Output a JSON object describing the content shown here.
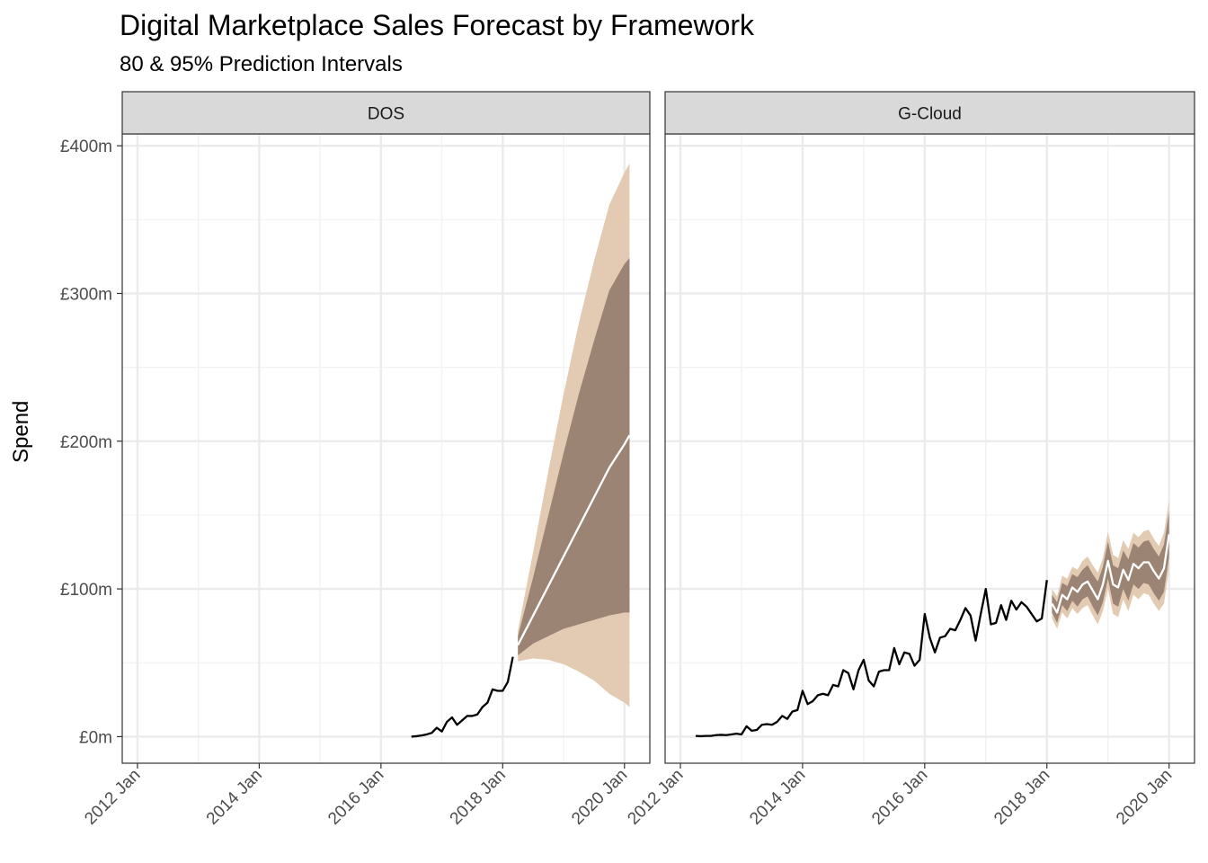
{
  "chart_data": {
    "type": "line",
    "title": "Digital Marketplace Sales Forecast by Framework",
    "subtitle": "80 & 95% Prediction Intervals",
    "ylabel": "Spend",
    "xlabel": "",
    "ylim": [
      -18,
      408
    ],
    "xlim": [
      "2011-10",
      "2020-06"
    ],
    "y_ticks": [
      0,
      100,
      200,
      300,
      400
    ],
    "y_tick_labels": [
      "£0m",
      "£100m",
      "£200m",
      "£300m",
      "£400m"
    ],
    "x_ticks": [
      "2012-01",
      "2014-01",
      "2016-01",
      "2018-01",
      "2020-01"
    ],
    "x_tick_labels": [
      "2012 Jan",
      "2014 Jan",
      "2016 Jan",
      "2018 Jan",
      "2020 Jan"
    ],
    "grid": true,
    "colors": {
      "actual": "#000000",
      "forecast": "#ffffff",
      "pi95": "#e3cbb3",
      "pi80": "#9b8474",
      "strip": "#d9d9d9",
      "grid": "#ebebeb"
    },
    "panels": [
      {
        "name": "DOS",
        "actual": [
          [
            "2016-07",
            0
          ],
          [
            "2016-08",
            0.3
          ],
          [
            "2016-09",
            0.8
          ],
          [
            "2016-10",
            1.5
          ],
          [
            "2016-11",
            2.5
          ],
          [
            "2016-12",
            6
          ],
          [
            "2017-01",
            3.5
          ],
          [
            "2017-02",
            10
          ],
          [
            "2017-03",
            13
          ],
          [
            "2017-04",
            8
          ],
          [
            "2017-05",
            11
          ],
          [
            "2017-06",
            14
          ],
          [
            "2017-07",
            14
          ],
          [
            "2017-08",
            15
          ],
          [
            "2017-09",
            20
          ],
          [
            "2017-10",
            23
          ],
          [
            "2017-11",
            32
          ],
          [
            "2017-12",
            31
          ],
          [
            "2018-01",
            31
          ],
          [
            "2018-02",
            37
          ],
          [
            "2018-03",
            54
          ]
        ],
        "forecast": [
          [
            "2018-04",
            62
          ],
          [
            "2018-07",
            82
          ],
          [
            "2018-10",
            102
          ],
          [
            "2019-01",
            122
          ],
          [
            "2019-04",
            142
          ],
          [
            "2019-07",
            162
          ],
          [
            "2019-10",
            182
          ],
          [
            "2020-01",
            198
          ],
          [
            "2020-02",
            204
          ]
        ],
        "pi80": [
          [
            "2018-04",
            55,
            68
          ],
          [
            "2018-07",
            63,
            108
          ],
          [
            "2018-10",
            68,
            150
          ],
          [
            "2019-01",
            73,
            192
          ],
          [
            "2019-04",
            76,
            232
          ],
          [
            "2019-07",
            79,
            268
          ],
          [
            "2019-10",
            82,
            302
          ],
          [
            "2020-01",
            84,
            320
          ],
          [
            "2020-02",
            84,
            324
          ]
        ],
        "pi95": [
          [
            "2018-04",
            51,
            72
          ],
          [
            "2018-07",
            53,
            125
          ],
          [
            "2018-10",
            52,
            180
          ],
          [
            "2019-01",
            49,
            232
          ],
          [
            "2019-04",
            44,
            280
          ],
          [
            "2019-07",
            38,
            322
          ],
          [
            "2019-10",
            29,
            360
          ],
          [
            "2020-01",
            23,
            382
          ],
          [
            "2020-02",
            20,
            388
          ]
        ]
      },
      {
        "name": "G-Cloud",
        "actual": [
          [
            "2012-04",
            0.5
          ],
          [
            "2012-05",
            0.3
          ],
          [
            "2012-06",
            0.5
          ],
          [
            "2012-07",
            0.5
          ],
          [
            "2012-08",
            1
          ],
          [
            "2012-09",
            1.2
          ],
          [
            "2012-10",
            1
          ],
          [
            "2012-11",
            1.5
          ],
          [
            "2012-12",
            2
          ],
          [
            "2013-01",
            1.5
          ],
          [
            "2013-02",
            7
          ],
          [
            "2013-03",
            4
          ],
          [
            "2013-04",
            4.5
          ],
          [
            "2013-05",
            8
          ],
          [
            "2013-06",
            8.5
          ],
          [
            "2013-07",
            8
          ],
          [
            "2013-08",
            10
          ],
          [
            "2013-09",
            14
          ],
          [
            "2013-10",
            12
          ],
          [
            "2013-11",
            17
          ],
          [
            "2013-12",
            18
          ],
          [
            "2014-01",
            31
          ],
          [
            "2014-02",
            22
          ],
          [
            "2014-03",
            24
          ],
          [
            "2014-04",
            28
          ],
          [
            "2014-05",
            29
          ],
          [
            "2014-06",
            28
          ],
          [
            "2014-07",
            35
          ],
          [
            "2014-08",
            34
          ],
          [
            "2014-09",
            45
          ],
          [
            "2014-10",
            43
          ],
          [
            "2014-11",
            32
          ],
          [
            "2014-12",
            45
          ],
          [
            "2015-01",
            52
          ],
          [
            "2015-02",
            38
          ],
          [
            "2015-03",
            34
          ],
          [
            "2015-04",
            44
          ],
          [
            "2015-05",
            45
          ],
          [
            "2015-06",
            45
          ],
          [
            "2015-07",
            60
          ],
          [
            "2015-08",
            49
          ],
          [
            "2015-09",
            57
          ],
          [
            "2015-10",
            56
          ],
          [
            "2015-11",
            48
          ],
          [
            "2015-12",
            52
          ],
          [
            "2016-01",
            83
          ],
          [
            "2016-02",
            67
          ],
          [
            "2016-03",
            57
          ],
          [
            "2016-04",
            67
          ],
          [
            "2016-05",
            68
          ],
          [
            "2016-06",
            73
          ],
          [
            "2016-07",
            72
          ],
          [
            "2016-08",
            79
          ],
          [
            "2016-09",
            87
          ],
          [
            "2016-10",
            82
          ],
          [
            "2016-11",
            65
          ],
          [
            "2016-12",
            83
          ],
          [
            "2017-01",
            100
          ],
          [
            "2017-02",
            76
          ],
          [
            "2017-03",
            77
          ],
          [
            "2017-04",
            89
          ],
          [
            "2017-05",
            79
          ],
          [
            "2017-06",
            92
          ],
          [
            "2017-07",
            86
          ],
          [
            "2017-08",
            91
          ],
          [
            "2017-09",
            88
          ],
          [
            "2017-10",
            83
          ],
          [
            "2017-11",
            78
          ],
          [
            "2017-12",
            80
          ],
          [
            "2018-01",
            106
          ]
        ],
        "forecast": [
          [
            "2018-02",
            90
          ],
          [
            "2018-03",
            84
          ],
          [
            "2018-04",
            96
          ],
          [
            "2018-05",
            93
          ],
          [
            "2018-06",
            101
          ],
          [
            "2018-07",
            98
          ],
          [
            "2018-08",
            103
          ],
          [
            "2018-09",
            105
          ],
          [
            "2018-10",
            99
          ],
          [
            "2018-11",
            93
          ],
          [
            "2018-12",
            103
          ],
          [
            "2019-01",
            119
          ],
          [
            "2019-02",
            103
          ],
          [
            "2019-03",
            101
          ],
          [
            "2019-04",
            113
          ],
          [
            "2019-05",
            106
          ],
          [
            "2019-06",
            117
          ],
          [
            "2019-07",
            114
          ],
          [
            "2019-08",
            118
          ],
          [
            "2019-09",
            118
          ],
          [
            "2019-10",
            112
          ],
          [
            "2019-11",
            107
          ],
          [
            "2019-12",
            114
          ],
          [
            "2020-01",
            137
          ]
        ],
        "pi80": [
          [
            "2018-02",
            96,
            84
          ],
          [
            "2018-03",
            91,
            77
          ],
          [
            "2018-04",
            104,
            89
          ],
          [
            "2018-05",
            102,
            85
          ],
          [
            "2018-06",
            110,
            92
          ],
          [
            "2018-07",
            108,
            88
          ],
          [
            "2018-08",
            113,
            93
          ],
          [
            "2018-09",
            116,
            95
          ],
          [
            "2018-10",
            110,
            88
          ],
          [
            "2018-11",
            105,
            82
          ],
          [
            "2018-12",
            115,
            91
          ],
          [
            "2019-01",
            132,
            107
          ],
          [
            "2019-02",
            116,
            90
          ],
          [
            "2019-03",
            114,
            88
          ],
          [
            "2019-04",
            126,
            100
          ],
          [
            "2019-05",
            120,
            92
          ],
          [
            "2019-06",
            131,
            103
          ],
          [
            "2019-07",
            128,
            100
          ],
          [
            "2019-08",
            132,
            104
          ],
          [
            "2019-09",
            133,
            103
          ],
          [
            "2019-10",
            127,
            97
          ],
          [
            "2019-11",
            122,
            92
          ],
          [
            "2019-12",
            130,
            98
          ],
          [
            "2020-01",
            152,
            122
          ]
        ],
        "pi95": [
          [
            "2018-02",
            100,
            80
          ],
          [
            "2018-03",
            95,
            73
          ],
          [
            "2018-04",
            109,
            84
          ],
          [
            "2018-05",
            107,
            80
          ],
          [
            "2018-06",
            115,
            87
          ],
          [
            "2018-07",
            113,
            83
          ],
          [
            "2018-08",
            119,
            87
          ],
          [
            "2018-09",
            122,
            89
          ],
          [
            "2018-10",
            116,
            82
          ],
          [
            "2018-11",
            111,
            76
          ],
          [
            "2018-12",
            121,
            85
          ],
          [
            "2019-01",
            139,
            100
          ],
          [
            "2019-02",
            123,
            83
          ],
          [
            "2019-03",
            121,
            81
          ],
          [
            "2019-04",
            133,
            93
          ],
          [
            "2019-05",
            127,
            85
          ],
          [
            "2019-06",
            138,
            96
          ],
          [
            "2019-07",
            135,
            93
          ],
          [
            "2019-08",
            139,
            97
          ],
          [
            "2019-09",
            140,
            96
          ],
          [
            "2019-10",
            134,
            90
          ],
          [
            "2019-11",
            129,
            85
          ],
          [
            "2019-12",
            138,
            90
          ],
          [
            "2020-01",
            160,
            114
          ]
        ]
      }
    ]
  }
}
